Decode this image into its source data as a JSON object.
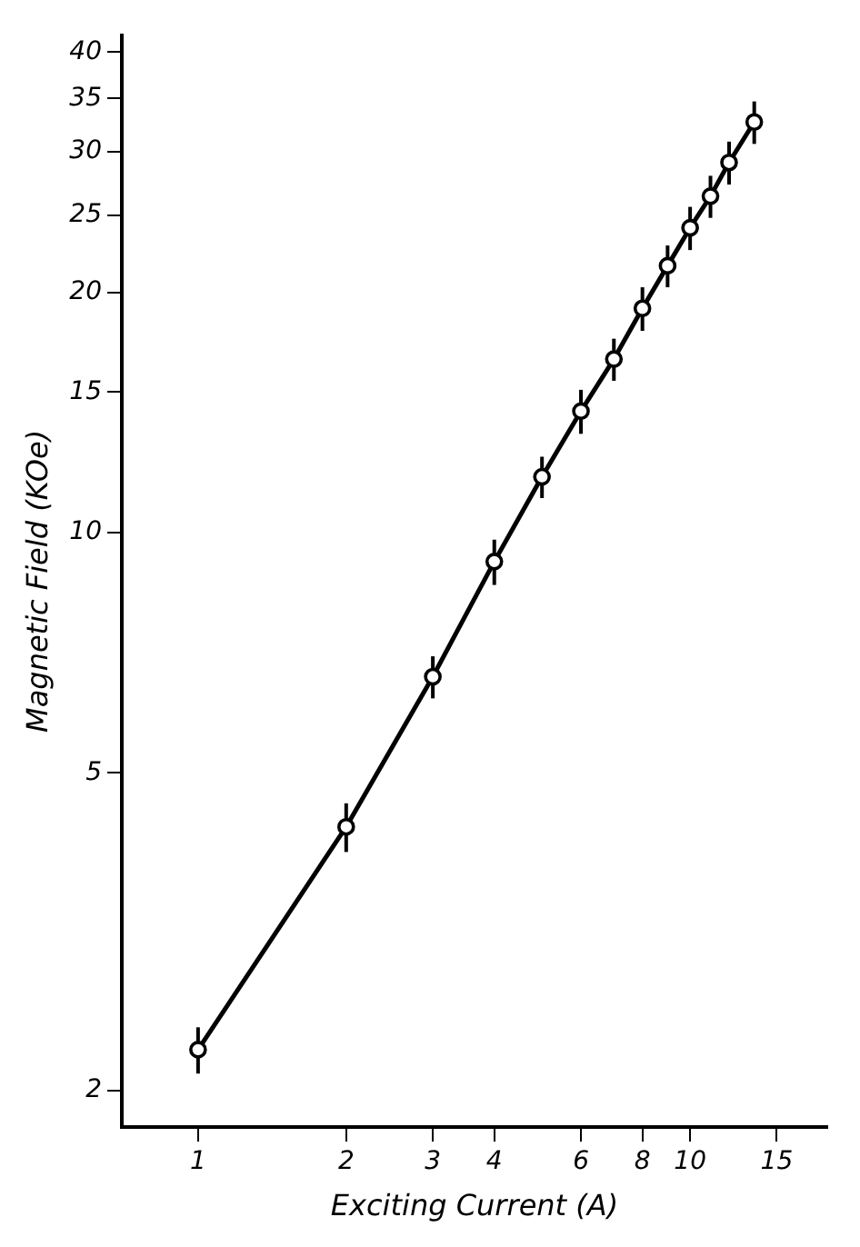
{
  "chart_data": {
    "type": "line",
    "xlabel": "Exciting Current (A)",
    "ylabel": "Magnetic Field (KOe)",
    "x": [
      1,
      2,
      3,
      4,
      5,
      6,
      7,
      8,
      9,
      10,
      11,
      12,
      13.5
    ],
    "series": [
      {
        "color": "#000000",
        "values": [
          2.25,
          4.28,
          6.6,
          9.2,
          11.75,
          14.2,
          16.5,
          19.1,
          21.6,
          24.1,
          26.4,
          29.1,
          32.7
        ],
        "errors": [
          0.15,
          0.3,
          0.4,
          0.6,
          0.7,
          0.9,
          1.0,
          1.2,
          1.3,
          1.5,
          1.6,
          1.8,
          2.0
        ]
      }
    ],
    "log": "xy",
    "xlim": [
      0.7,
      19
    ],
    "ylim": [
      1.8,
      42
    ],
    "xticks": [
      1,
      2,
      3,
      4,
      6,
      8,
      10,
      15
    ],
    "yticks": [
      2,
      5,
      10,
      15,
      20,
      25,
      30,
      35,
      40
    ],
    "grid": false,
    "legend": false,
    "marker": "circle",
    "line_style": "solid"
  }
}
